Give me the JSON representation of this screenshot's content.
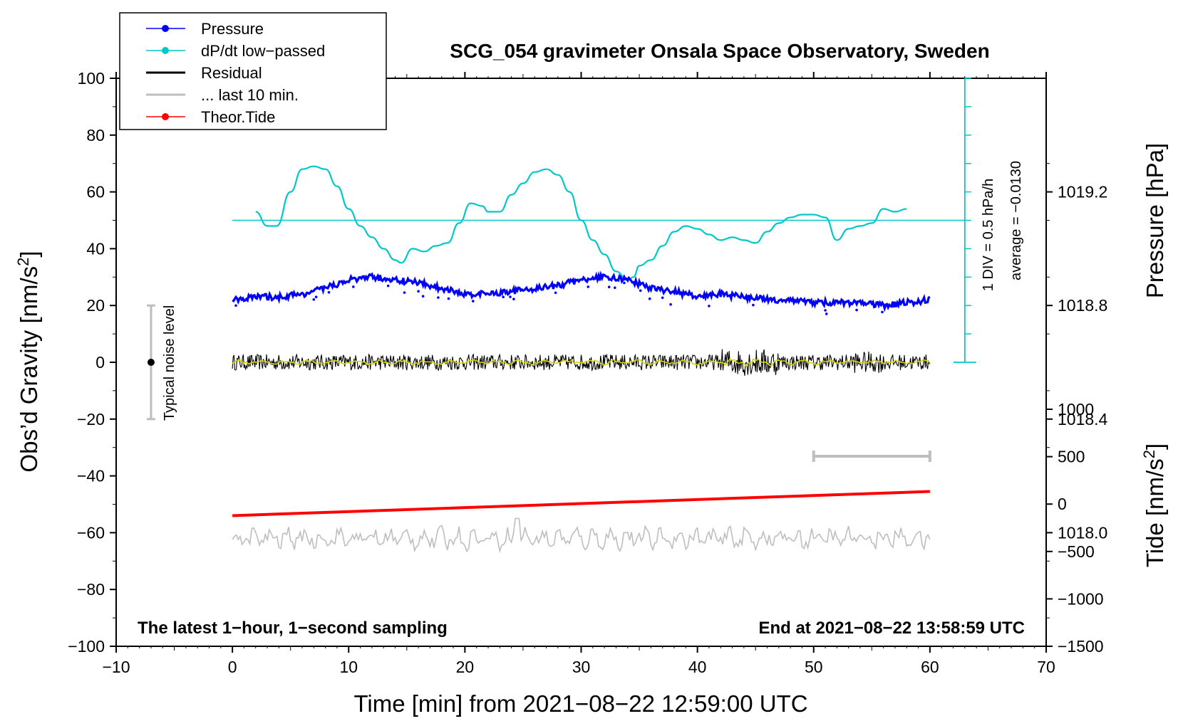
{
  "chart_data": {
    "type": "line",
    "title": "SCG_054 gravimeter Onsala Space Observatory, Sweden",
    "xlabel": "Time [min] from 2021−08−22 12:59:00 UTC",
    "ylabel_left": "Obs’d Gravity [nm/s",
    "ylabel_left_sup": "2",
    "ylabel_left_end": "]",
    "ylabel_right_pressure": "Pressure [hPa]",
    "ylabel_right_tide": "Tide [nm/s",
    "ylabel_right_tide_sup": "2",
    "ylabel_right_tide_end": "]",
    "xlim": [
      -10,
      70
    ],
    "ylim": [
      -100,
      100
    ],
    "x_ticks": [
      "−10",
      "0",
      "10",
      "20",
      "30",
      "40",
      "50",
      "60",
      "70"
    ],
    "y_ticks": [
      "−100",
      "−80",
      "−60",
      "−40",
      "−20",
      "0",
      "20",
      "40",
      "60",
      "80",
      "100"
    ],
    "pressure_axis": {
      "range_hPa": [
        1017.6,
        1019.6
      ],
      "ticks": [
        "1018.0",
        "1018.4",
        "1018.8",
        "1019.2"
      ]
    },
    "tide_axis": {
      "range": [
        -1500,
        1000
      ],
      "ticks": [
        "−1500",
        "−1000",
        "−500",
        "0",
        "500",
        "1000"
      ]
    },
    "legend": [
      {
        "label": "Pressure",
        "color": "#0000ff"
      },
      {
        "label": "dP/dt low−passed",
        "color": "#00c8c8"
      },
      {
        "label": "Residual",
        "color": "#000000"
      },
      {
        "label": "... last 10 min.",
        "color": "#bebebe"
      },
      {
        "label": "Theor.Tide",
        "color": "#ff0000"
      }
    ],
    "annotations": {
      "noise": "Typical noise level",
      "noise_range": [
        -20,
        20
      ],
      "div_label": "1 DIV = 0.5 hPa/h",
      "average_label": "average = −0.0130",
      "bottom_left": "The latest 1−hour, 1−second sampling",
      "bottom_right": "End at 2021−08−22 13:58:59 UTC",
      "last10_bar_min": [
        50,
        60
      ]
    },
    "series": [
      {
        "name": "Pressure",
        "unit": "hPa",
        "x": [
          0,
          2,
          4,
          6,
          8,
          10,
          12,
          14,
          16,
          18,
          20,
          22,
          24,
          26,
          28,
          30,
          32,
          34,
          36,
          38,
          40,
          42,
          44,
          46,
          48,
          50,
          52,
          54,
          56,
          58,
          60
        ],
        "values": [
          1018.82,
          1018.83,
          1018.83,
          1018.84,
          1018.86,
          1018.89,
          1018.9,
          1018.89,
          1018.88,
          1018.86,
          1018.84,
          1018.84,
          1018.85,
          1018.86,
          1018.87,
          1018.89,
          1018.9,
          1018.89,
          1018.86,
          1018.85,
          1018.83,
          1018.84,
          1018.83,
          1018.82,
          1018.82,
          1018.81,
          1018.81,
          1018.81,
          1018.8,
          1018.81,
          1018.82
        ]
      },
      {
        "name": "dP/dt low-passed",
        "unit": "nm/s2 (plot units)",
        "x": [
          2,
          3,
          3.8,
          5,
          6,
          7,
          8,
          9,
          10,
          11,
          12,
          13,
          14,
          14.5,
          15.5,
          16.5,
          17.5,
          18.5,
          19.5,
          20.5,
          21.5,
          22,
          23,
          24,
          25,
          26,
          27,
          28,
          29,
          30,
          31,
          32,
          33,
          34,
          34.5,
          35,
          36,
          37,
          38,
          39,
          40,
          41,
          42,
          43,
          44,
          45,
          46,
          47,
          48,
          49,
          50,
          51,
          52,
          53,
          54,
          55,
          56,
          57,
          58
        ],
        "values": [
          53,
          48,
          48,
          60,
          68,
          69,
          68,
          62,
          54,
          48,
          44,
          40,
          36,
          35,
          40,
          39,
          41,
          42,
          49,
          56,
          55,
          53,
          53,
          59,
          63,
          67,
          68,
          66,
          60,
          50,
          43,
          38,
          32,
          29,
          30,
          34,
          36,
          41,
          46,
          48,
          47,
          45,
          43,
          44,
          43,
          42,
          46,
          49,
          51,
          52,
          52,
          51,
          43,
          47,
          48,
          49,
          54,
          53,
          54
        ]
      },
      {
        "name": "Residual",
        "unit": "nm/s2",
        "x": [
          0,
          60
        ],
        "values": [
          0,
          0
        ]
      },
      {
        "name": "... last 10 min.",
        "unit": "nm/s2",
        "x": [
          0,
          60
        ],
        "values": [
          -62,
          -62
        ]
      },
      {
        "name": "Theor.Tide",
        "unit": "nm/s2",
        "x": [
          0,
          60
        ],
        "values": [
          -54,
          -45.5
        ]
      }
    ]
  }
}
